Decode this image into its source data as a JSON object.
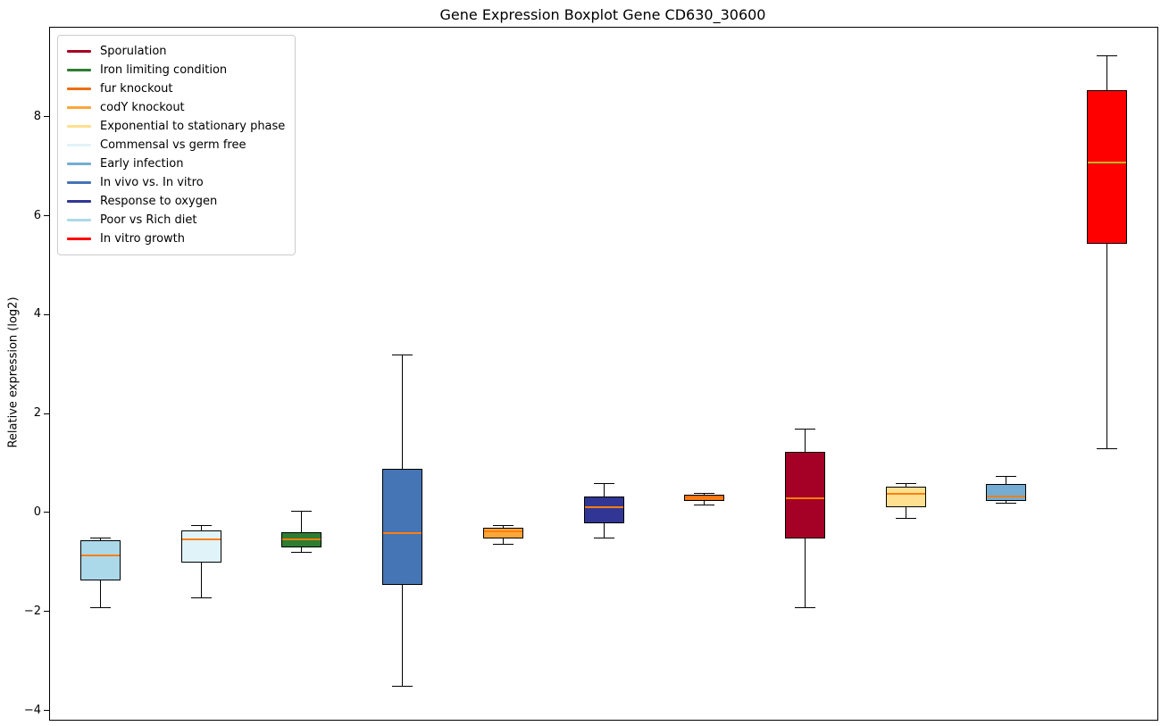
{
  "chart_data": {
    "type": "boxplot",
    "title": "Gene Expression Boxplot Gene CD630_30600",
    "xlabel": "",
    "ylabel": "Relative expression (log2)",
    "ylim": [
      -4.17,
      9.82
    ],
    "yticks": [
      -4,
      -2,
      0,
      2,
      4,
      6,
      8
    ],
    "grid": false,
    "legend_position": "upper left",
    "legend": [
      {
        "label": "Sporulation",
        "color": "#a50026"
      },
      {
        "label": "Iron limiting condition",
        "color": "#2e7d32"
      },
      {
        "label": "fur knockout",
        "color": "#ec7014"
      },
      {
        "label": "codY knockout",
        "color": "#f9a63a"
      },
      {
        "label": "Exponential to stationary phase",
        "color": "#fee090"
      },
      {
        "label": "Commensal vs germ free",
        "color": "#e0f3f8"
      },
      {
        "label": "Early infection",
        "color": "#74add1"
      },
      {
        "label": "In vivo vs. In vitro",
        "color": "#4575b4"
      },
      {
        "label": "Response to oxygen",
        "color": "#313695"
      },
      {
        "label": "Poor vs Rich diet",
        "color": "#abd9e9"
      },
      {
        "label": "In vitro growth",
        "color": "#ff0000"
      }
    ],
    "boxes": [
      {
        "condition": "Poor vs Rich diet",
        "color": "#abd9e9",
        "whisker_low": -1.9,
        "q1": -1.35,
        "median": -0.85,
        "q3": -0.55,
        "whisker_high": -0.5,
        "median_color": "#ff7f0e"
      },
      {
        "condition": "Commensal vs germ free",
        "color": "#e0f3f8",
        "whisker_low": -1.7,
        "q1": -1.0,
        "median": -0.52,
        "q3": -0.35,
        "whisker_high": -0.25,
        "median_color": "#ff7f0e"
      },
      {
        "condition": "Iron limiting condition",
        "color": "#2e7d32",
        "whisker_low": -0.78,
        "q1": -0.68,
        "median": -0.52,
        "q3": -0.38,
        "whisker_high": 0.05,
        "median_color": "#ff7f0e"
      },
      {
        "condition": "In vivo vs. In vitro",
        "color": "#4575b4",
        "whisker_low": -3.5,
        "q1": -1.45,
        "median": -0.4,
        "q3": 0.9,
        "whisker_high": 3.2,
        "median_color": "#ff7f0e"
      },
      {
        "condition": "codY knockout",
        "color": "#f9a63a",
        "whisker_low": -0.63,
        "q1": -0.5,
        "median": -0.37,
        "q3": -0.28,
        "whisker_high": -0.25,
        "median_color": "#ff7f0e"
      },
      {
        "condition": "Response to oxygen",
        "color": "#313695",
        "whisker_low": -0.5,
        "q1": -0.2,
        "median": 0.12,
        "q3": 0.35,
        "whisker_high": 0.6,
        "median_color": "#ff7f0e"
      },
      {
        "condition": "fur knockout",
        "color": "#ec7014",
        "whisker_low": 0.18,
        "q1": 0.25,
        "median": 0.3,
        "q3": 0.38,
        "whisker_high": 0.4,
        "median_color": "#ff7f0e"
      },
      {
        "condition": "Sporulation",
        "color": "#a50026",
        "whisker_low": -1.9,
        "q1": -0.5,
        "median": 0.3,
        "q3": 1.25,
        "whisker_high": 1.7,
        "median_color": "#ff7f0e"
      },
      {
        "condition": "Exponential to stationary phase",
        "color": "#fee090",
        "whisker_low": -0.1,
        "q1": 0.12,
        "median": 0.4,
        "q3": 0.55,
        "whisker_high": 0.6,
        "median_color": "#ff7f0e"
      },
      {
        "condition": "Early infection",
        "color": "#74add1",
        "whisker_low": 0.2,
        "q1": 0.25,
        "median": 0.35,
        "q3": 0.6,
        "whisker_high": 0.75,
        "median_color": "#ff7f0e"
      },
      {
        "condition": "In vitro growth",
        "color": "#ff0000",
        "whisker_low": 1.3,
        "q1": 5.45,
        "median": 7.1,
        "q3": 8.55,
        "whisker_high": 9.25,
        "median_color": "#bdb42a"
      }
    ]
  }
}
